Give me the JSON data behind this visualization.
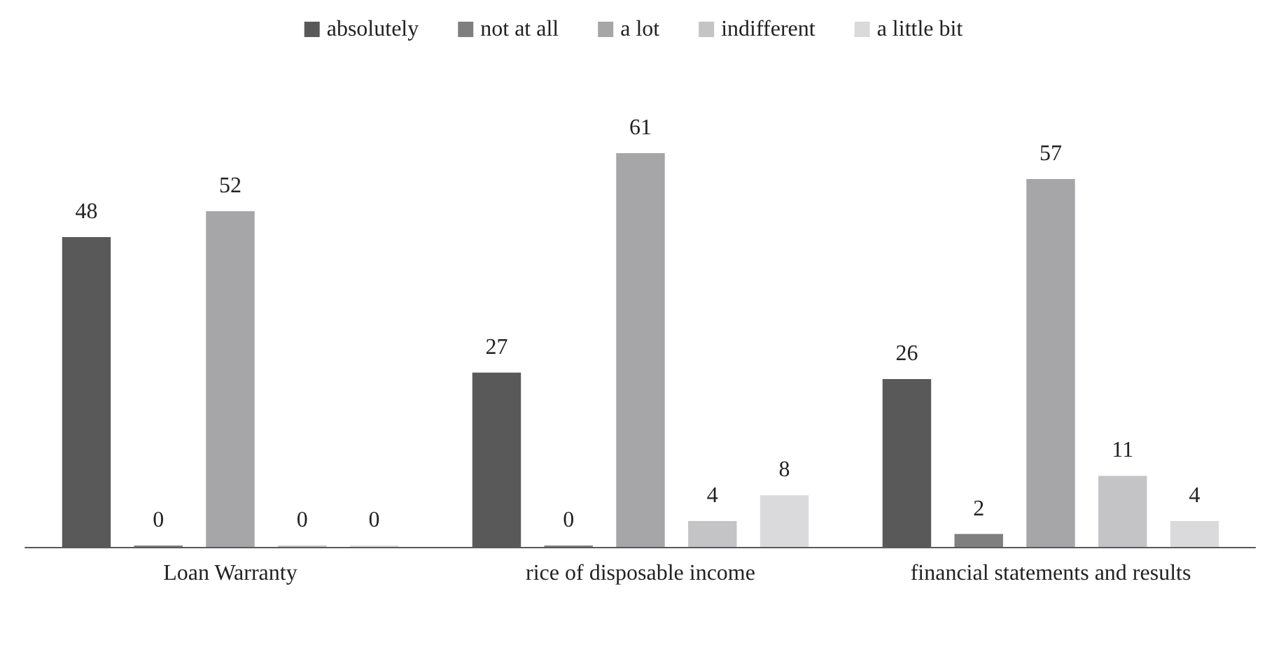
{
  "chart_data": {
    "type": "bar",
    "categories": [
      "Loan Warranty",
      "rice of disposable income",
      "financial statements and results"
    ],
    "series": [
      {
        "name": "absolutely",
        "color": "#595959",
        "values": [
          48,
          27,
          26
        ]
      },
      {
        "name": "not at all",
        "color": "#7f7f7f",
        "values": [
          0,
          0,
          2
        ]
      },
      {
        "name": "a lot",
        "color": "#a6a6a8",
        "values": [
          52,
          61,
          57
        ]
      },
      {
        "name": "indifferent",
        "color": "#c4c4c6",
        "values": [
          0,
          4,
          11
        ]
      },
      {
        "name": "a little bit",
        "color": "#dadadc",
        "values": [
          0,
          8,
          4
        ]
      }
    ],
    "data_labels": true,
    "legend": "top"
  }
}
